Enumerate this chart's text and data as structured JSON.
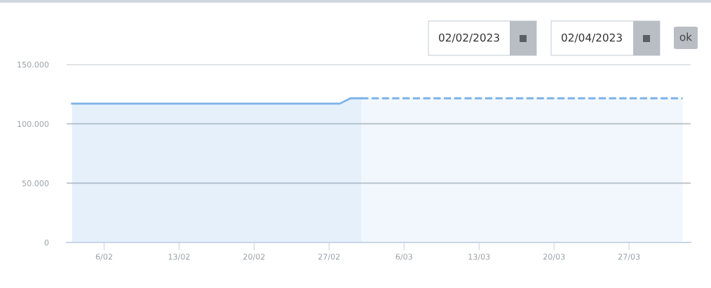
{
  "chart_data": {
    "type": "area",
    "series": [
      {
        "x": [
          "2023-02-03",
          "2023-02-10",
          "2023-02-17",
          "2023-02-24",
          "2023-02-28",
          "2023-03-01",
          "2023-03-02"
        ],
        "values": [
          117000,
          117000,
          117000,
          117000,
          117000,
          121500,
          121500
        ],
        "color": "#7cb2e8",
        "line_style": "solid"
      },
      {
        "x": [
          "2023-03-02",
          "2023-03-09",
          "2023-03-16",
          "2023-03-23",
          "2023-04-01"
        ],
        "values": [
          121500,
          121500,
          121500,
          121500,
          121500
        ],
        "color": "#7cb2e8",
        "line_style": "dashed"
      }
    ],
    "xlim": [
      "2023-02-02T12:00",
      "2023-04-01T18:00"
    ],
    "xticks": [
      {
        "value": "2023-02-06",
        "label": "6/02"
      },
      {
        "value": "2023-02-13",
        "label": "13/02"
      },
      {
        "value": "2023-02-20",
        "label": "20/02"
      },
      {
        "value": "2023-02-27",
        "label": "27/02"
      },
      {
        "value": "2023-03-06",
        "label": "6/03"
      },
      {
        "value": "2023-03-13",
        "label": "13/03"
      },
      {
        "value": "2023-03-20",
        "label": "20/03"
      },
      {
        "value": "2023-03-27",
        "label": "27/03"
      }
    ],
    "ylim": [
      0,
      150000
    ],
    "yticks": [
      {
        "value": 0,
        "label": "0"
      },
      {
        "value": 50000,
        "label": "50.000"
      },
      {
        "value": 100000,
        "label": "100.000"
      },
      {
        "value": 150000,
        "label": "150.000"
      }
    ],
    "grid": "y",
    "marker": "none",
    "annotations": [
      "02/02/2023",
      "02/04/2023",
      "ok"
    ]
  }
}
